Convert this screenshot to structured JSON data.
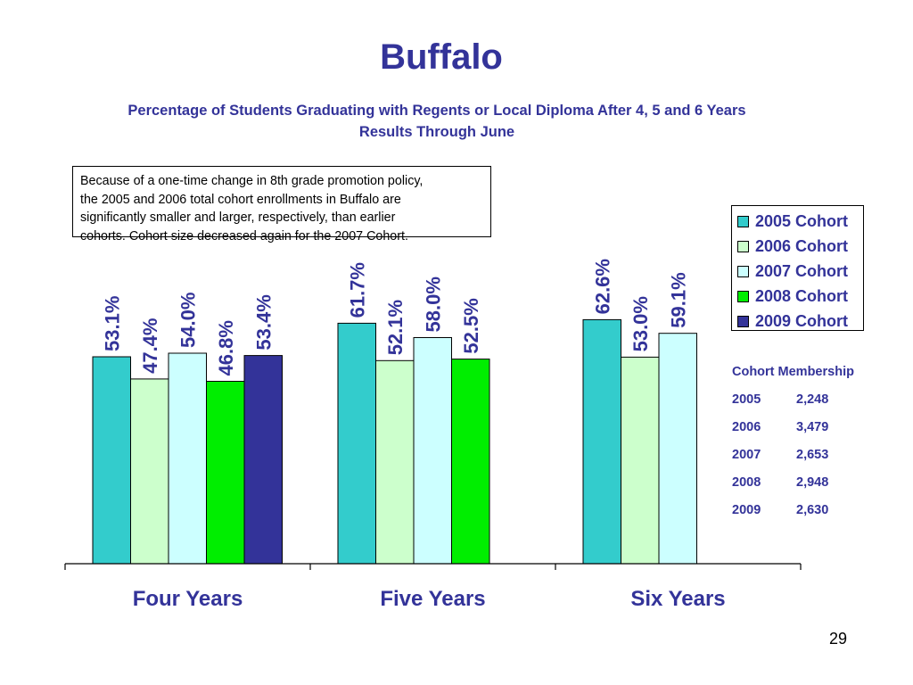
{
  "header": {
    "title": "Buffalo",
    "subtitle_line1": "Percentage of Students Graduating with Regents or Local Diploma After 4, 5 and 6 Years",
    "subtitle_line2": "Results Through June"
  },
  "note": {
    "lines": [
      "Because of a one-time change in 8th grade promotion policy,",
      "the 2005 and 2006 total cohort enrollments in Buffalo are",
      "significantly smaller and larger, respectively, than earlier",
      "cohorts.  Cohort size decreased again for the 2007 Cohort."
    ]
  },
  "chart_data": {
    "type": "bar",
    "title": "Buffalo",
    "subtitle": "Percentage of Students Graduating with Regents or Local Diploma After 4, 5 and 6 Years",
    "categories": [
      "Four Years",
      "Five Years",
      "Six Years"
    ],
    "series": [
      {
        "name": "2005 Cohort",
        "color": "#33CCCC",
        "values": [
          53.1,
          61.7,
          62.6
        ],
        "labels": [
          "53.1%",
          "61.7%",
          "62.6%"
        ]
      },
      {
        "name": "2006 Cohort",
        "color": "#CCFFCC",
        "values": [
          47.4,
          52.1,
          53.0
        ],
        "labels": [
          "47.4%",
          "52.1%",
          "53.0%"
        ]
      },
      {
        "name": "2007 Cohort",
        "color": "#CCFFFF",
        "values": [
          54.0,
          58.0,
          59.1
        ],
        "labels": [
          "54.0%",
          "58.0%",
          "59.1%"
        ]
      },
      {
        "name": "2008 Cohort",
        "color": "#00EE00",
        "values": [
          46.8,
          52.5,
          null
        ],
        "labels": [
          "46.8%",
          "52.5%",
          null
        ]
      },
      {
        "name": "2009 Cohort",
        "color": "#333399",
        "values": [
          53.4,
          null,
          null
        ],
        "labels": [
          "53.4%",
          null,
          null
        ]
      }
    ],
    "ylim": [
      0,
      100
    ],
    "grid": false,
    "legend_position": "right"
  },
  "membership": {
    "title": "Cohort Membership",
    "rows": [
      {
        "year": "2005",
        "count": "2,248"
      },
      {
        "year": "2006",
        "count": "3,479"
      },
      {
        "year": "2007",
        "count": "2,653"
      },
      {
        "year": "2008",
        "count": "2,948"
      },
      {
        "year": "2009",
        "count": "2,630"
      }
    ]
  },
  "page_number": "29",
  "colors": {
    "title": "#333399",
    "axis": "#000000"
  }
}
